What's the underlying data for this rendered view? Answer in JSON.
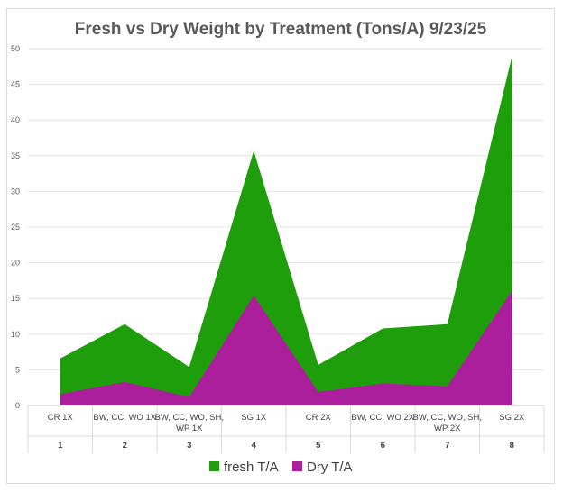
{
  "chart_data": {
    "type": "area",
    "title": "Fresh vs Dry Weight by Treatment (Tons/A) 9/23/25",
    "xlabel": "",
    "ylabel": "",
    "ylim": [
      0,
      50
    ],
    "yticks": [
      0,
      5,
      10,
      15,
      20,
      25,
      30,
      35,
      40,
      45,
      50
    ],
    "grid": true,
    "legend_position": "bottom",
    "categories": [
      {
        "label_lines": [
          "CR  1X"
        ],
        "number": "1"
      },
      {
        "label_lines": [
          "BW, CC, WO 1X"
        ],
        "number": "2"
      },
      {
        "label_lines": [
          "BW, CC, WO, SH,",
          "WP 1X"
        ],
        "number": "3"
      },
      {
        "label_lines": [
          "SG 1X"
        ],
        "number": "4"
      },
      {
        "label_lines": [
          "CR  2X"
        ],
        "number": "5"
      },
      {
        "label_lines": [
          "BW, CC, WO 2X"
        ],
        "number": "6"
      },
      {
        "label_lines": [
          "BW, CC, WO, SH,",
          "WP 2X"
        ],
        "number": "7"
      },
      {
        "label_lines": [
          "SG 2X"
        ],
        "number": "8"
      }
    ],
    "series": [
      {
        "name": "fresh T/A",
        "color": "#1e9e0a",
        "values": [
          6.6,
          11.4,
          5.4,
          35.7,
          5.7,
          10.8,
          11.4,
          48.8
        ]
      },
      {
        "name": "Dry T/A",
        "color": "#ac1f9c",
        "values": [
          1.6,
          3.3,
          1.2,
          15.4,
          1.9,
          3.1,
          2.7,
          16.0
        ]
      }
    ]
  }
}
